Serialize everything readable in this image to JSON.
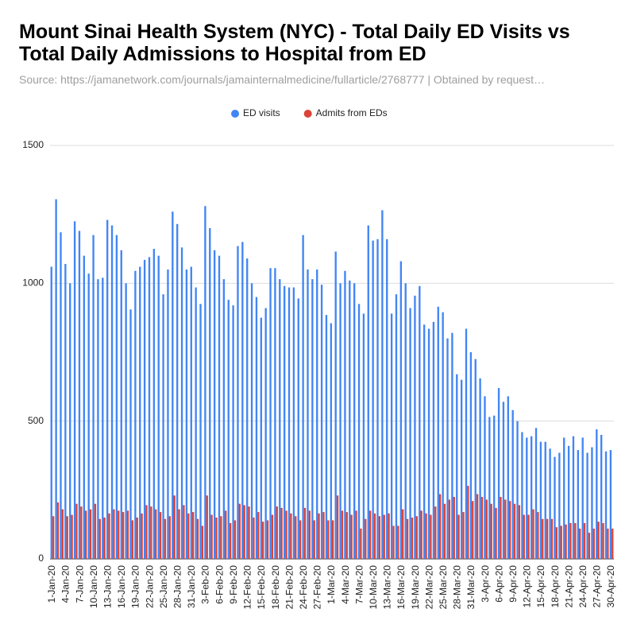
{
  "chart_data": {
    "type": "bar",
    "title": "Mount Sinai Health System (NYC) - Total Daily ED Visits vs Total Daily Admissions to Hospital from ED",
    "subtitle": "Source: https://jamanetwork.com/journals/jamainternalmedicine/fullarticle/2768777 | Obtained by request…",
    "categories": [
      "1-Jan-20",
      null,
      null,
      "4-Jan-20",
      null,
      null,
      "7-Jan-20",
      null,
      null,
      "10-Jan-20",
      null,
      null,
      "13-Jan-20",
      null,
      null,
      "16-Jan-20",
      null,
      null,
      "19-Jan-20",
      null,
      null,
      "22-Jan-20",
      null,
      null,
      "25-Jan-20",
      null,
      null,
      "28-Jan-20",
      null,
      null,
      "31-Jan-20",
      null,
      null,
      "3-Feb-20",
      null,
      null,
      "6-Feb-20",
      null,
      null,
      "9-Feb-20",
      null,
      null,
      "12-Feb-20",
      null,
      null,
      "15-Feb-20",
      null,
      null,
      "18-Feb-20",
      null,
      null,
      "21-Feb-20",
      null,
      null,
      "24-Feb-20",
      null,
      null,
      "27-Feb-20",
      null,
      null,
      "1-Mar-20",
      null,
      null,
      "4-Mar-20",
      null,
      null,
      "7-Mar-20",
      null,
      null,
      "10-Mar-20",
      null,
      null,
      "13-Mar-20",
      null,
      null,
      "16-Mar-20",
      null,
      null,
      "19-Mar-20",
      null,
      null,
      "22-Mar-20",
      null,
      null,
      "25-Mar-20",
      null,
      null,
      "28-Mar-20",
      null,
      null,
      "31-Mar-20",
      null,
      null,
      "3-Apr-20",
      null,
      null,
      "6-Apr-20",
      null,
      null,
      "9-Apr-20",
      null,
      null,
      "12-Apr-20",
      null,
      null,
      "15-Apr-20",
      null,
      null,
      "18-Apr-20",
      null,
      null,
      "21-Apr-20",
      null,
      null,
      "24-Apr-20",
      null,
      null,
      "27-Apr-20",
      null,
      null,
      "30-Apr-20"
    ],
    "series": [
      {
        "name": "ED visits",
        "color": "#4285f4",
        "values": [
          1060,
          1305,
          1185,
          1070,
          1000,
          1225,
          1190,
          1100,
          1035,
          1175,
          1015,
          1020,
          1230,
          1210,
          1175,
          1120,
          1000,
          905,
          1045,
          1060,
          1085,
          1095,
          1125,
          1100,
          960,
          1050,
          1260,
          1215,
          1130,
          1050,
          1060,
          985,
          925,
          1280,
          1200,
          1120,
          1100,
          1015,
          940,
          920,
          1135,
          1150,
          1090,
          1000,
          950,
          875,
          910,
          1055,
          1055,
          1015,
          990,
          985,
          985,
          945,
          1175,
          1050,
          1015,
          1050,
          995,
          885,
          855,
          1115,
          1000,
          1045,
          1010,
          1000,
          925,
          890,
          1210,
          1155,
          1160,
          1265,
          1160,
          890,
          960,
          1080,
          1000,
          910,
          955,
          990,
          850,
          835,
          860,
          915,
          895,
          800,
          820,
          670,
          650,
          835,
          750,
          725,
          655,
          590,
          515,
          520,
          620,
          570,
          590,
          540,
          500,
          460,
          440,
          445,
          475,
          425,
          425,
          400,
          370,
          385,
          440,
          410,
          445,
          395,
          440,
          385,
          405,
          470,
          450,
          390,
          395
        ]
      },
      {
        "name": "Admits from EDs",
        "color": "#db4437",
        "values": [
          155,
          205,
          180,
          155,
          160,
          200,
          190,
          175,
          180,
          200,
          145,
          150,
          165,
          180,
          175,
          170,
          175,
          140,
          150,
          165,
          195,
          190,
          180,
          170,
          145,
          155,
          230,
          180,
          195,
          165,
          170,
          145,
          120,
          230,
          160,
          150,
          155,
          175,
          130,
          140,
          200,
          195,
          190,
          150,
          170,
          135,
          140,
          160,
          190,
          185,
          175,
          165,
          155,
          140,
          185,
          175,
          140,
          165,
          170,
          140,
          140,
          230,
          175,
          170,
          160,
          175,
          110,
          145,
          175,
          165,
          155,
          160,
          165,
          120,
          120,
          180,
          145,
          150,
          155,
          175,
          165,
          160,
          190,
          235,
          200,
          215,
          225,
          160,
          170,
          265,
          210,
          235,
          225,
          215,
          200,
          185,
          225,
          215,
          210,
          200,
          195,
          160,
          160,
          180,
          170,
          145,
          145,
          145,
          115,
          120,
          125,
          130,
          130,
          110,
          130,
          95,
          110,
          135,
          130,
          110,
          110
        ]
      }
    ],
    "ylim": [
      0,
      1500
    ],
    "yticks": [
      0,
      500,
      1000,
      1500
    ],
    "grid": true,
    "legend": "top"
  }
}
